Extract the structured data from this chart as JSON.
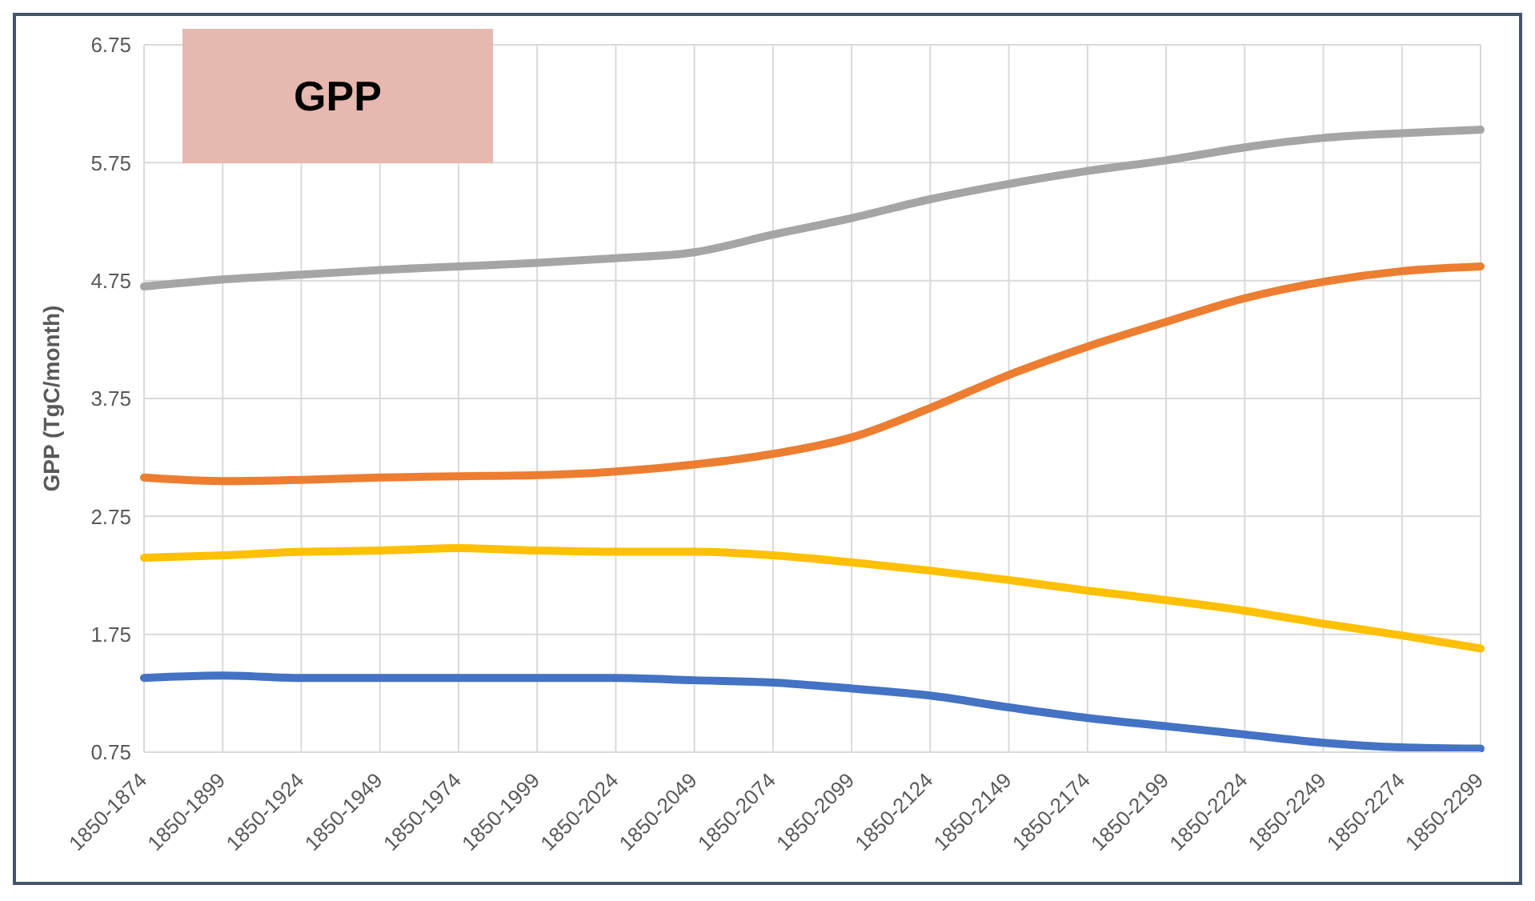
{
  "chart_data": {
    "type": "line",
    "ylabel": "GPP (TgC/month)",
    "annotations": [
      "GPP"
    ],
    "categories": [
      "1850-1874",
      "1850-1899",
      "1850-1924",
      "1850-1949",
      "1850-1974",
      "1850-1999",
      "1850-2024",
      "1850-2049",
      "1850-2074",
      "1850-2099",
      "1850-2124",
      "1850-2149",
      "1850-2174",
      "1850-2199",
      "1850-2224",
      "1850-2249",
      "1850-2274",
      "1850-2299"
    ],
    "series": [
      {
        "color": "#a5a5a5",
        "values": [
          4.7,
          4.76,
          4.8,
          4.84,
          4.87,
          4.9,
          4.94,
          4.99,
          5.14,
          5.28,
          5.44,
          5.57,
          5.68,
          5.77,
          5.88,
          5.96,
          6.0,
          6.03
        ]
      },
      {
        "color": "#ed7d31",
        "values": [
          3.08,
          3.05,
          3.06,
          3.08,
          3.09,
          3.1,
          3.13,
          3.19,
          3.28,
          3.42,
          3.67,
          3.95,
          4.19,
          4.4,
          4.6,
          4.74,
          4.83,
          4.87
        ]
      },
      {
        "color": "#ffc000",
        "values": [
          2.4,
          2.42,
          2.45,
          2.46,
          2.48,
          2.46,
          2.45,
          2.45,
          2.42,
          2.36,
          2.29,
          2.21,
          2.12,
          2.04,
          1.95,
          1.84,
          1.74,
          1.63
        ]
      },
      {
        "color": "#4472c4",
        "values": [
          1.38,
          1.4,
          1.38,
          1.38,
          1.38,
          1.38,
          1.38,
          1.36,
          1.34,
          1.29,
          1.23,
          1.13,
          1.04,
          0.97,
          0.9,
          0.83,
          0.79,
          0.78
        ]
      }
    ],
    "ylim": [
      0.75,
      6.75
    ],
    "yticks": [
      0.75,
      1.75,
      2.75,
      3.75,
      4.75,
      5.75,
      6.75
    ],
    "grid": true,
    "legend": false,
    "marker": "none",
    "line_style": "solid"
  }
}
